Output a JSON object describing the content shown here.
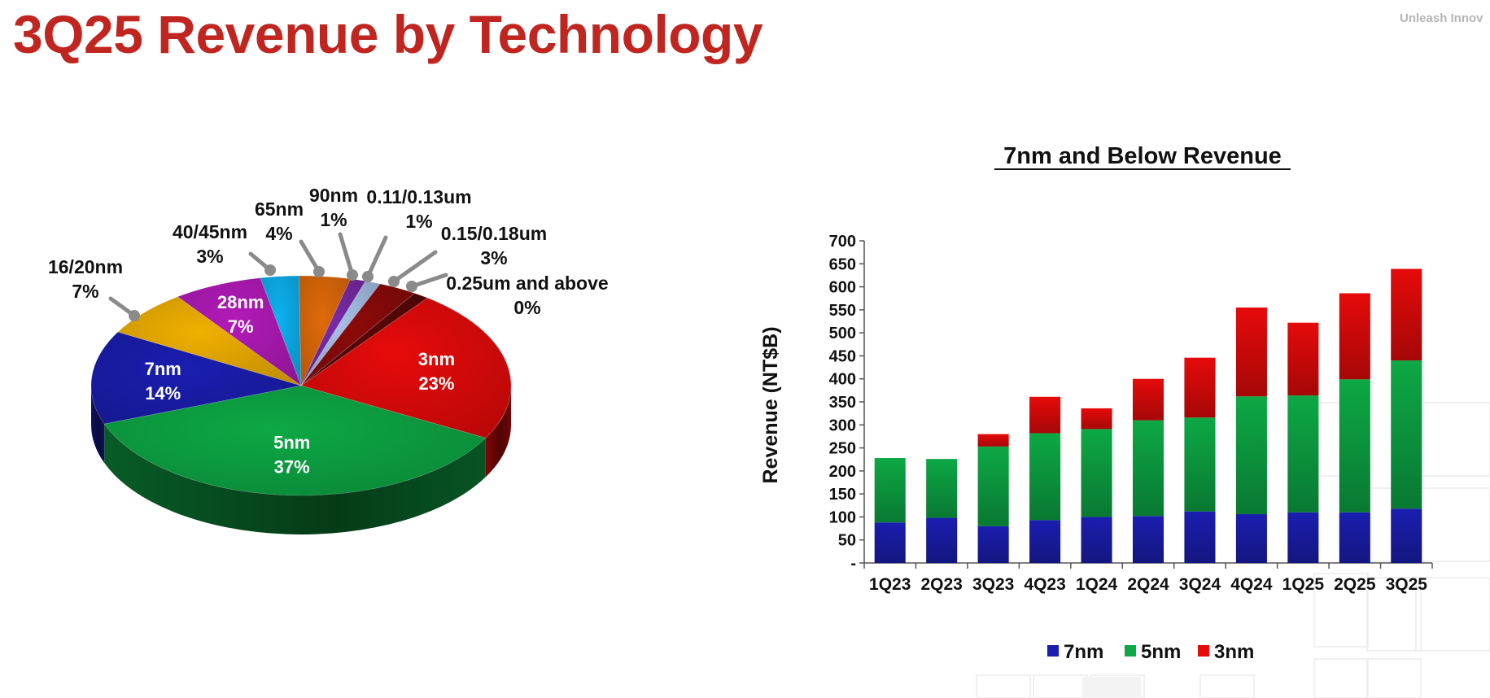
{
  "page": {
    "title": "3Q25 Revenue by Technology",
    "brand_tag": "Unleash Innov"
  },
  "chart_data": [
    {
      "type": "pie",
      "slices": [
        {
          "label": "3nm",
          "value": 23,
          "display": "23%",
          "color": "#e60a0a"
        },
        {
          "label": "5nm",
          "value": 37,
          "display": "37%",
          "color": "#0da845"
        },
        {
          "label": "7nm",
          "value": 14,
          "display": "14%",
          "color": "#1a1eb0"
        },
        {
          "label": "16/20nm",
          "value": 7,
          "display": "7%",
          "color": "#f0b000"
        },
        {
          "label": "28nm",
          "value": 7,
          "display": "7%",
          "color": "#b21ab8"
        },
        {
          "label": "40/45nm",
          "value": 3,
          "display": "3%",
          "color": "#0cb2f0"
        },
        {
          "label": "65nm",
          "value": 4,
          "display": "4%",
          "color": "#e06a0a"
        },
        {
          "label": "90nm",
          "value": 1,
          "display": "1%",
          "color": "#7a2aa8"
        },
        {
          "label": "0.11/0.13um",
          "value": 1,
          "display": "1%",
          "color": "#a8c0e8"
        },
        {
          "label": "0.15/0.18um",
          "value": 3,
          "display": "3%",
          "color": "#8c0a0a"
        },
        {
          "label": "0.25um and above",
          "value": 0,
          "display": "0%",
          "color": "#5a0606"
        }
      ]
    },
    {
      "type": "bar",
      "stacked": true,
      "title": "7nm and Below Revenue",
      "ylabel": "Revenue (NT$B)",
      "ylim": [
        0,
        700
      ],
      "yticks": [
        "-",
        "50",
        "100",
        "150",
        "200",
        "250",
        "300",
        "350",
        "400",
        "450",
        "500",
        "550",
        "600",
        "650",
        "700"
      ],
      "categories": [
        "1Q23",
        "2Q23",
        "3Q23",
        "4Q23",
        "1Q24",
        "2Q24",
        "3Q24",
        "4Q24",
        "1Q25",
        "2Q25",
        "3Q25"
      ],
      "series": [
        {
          "name": "7nm",
          "color": "#1a1eb0",
          "values": [
            88,
            98,
            80,
            93,
            100,
            102,
            112,
            106,
            110,
            110,
            118
          ]
        },
        {
          "name": "5nm",
          "color": "#0da845",
          "values": [
            140,
            128,
            173,
            189,
            191,
            208,
            204,
            256,
            254,
            289,
            322
          ]
        },
        {
          "name": "3nm",
          "color": "#e60a0a",
          "values": [
            0,
            0,
            27,
            79,
            45,
            90,
            130,
            193,
            158,
            187,
            199
          ]
        }
      ],
      "legend_position": "bottom"
    }
  ]
}
